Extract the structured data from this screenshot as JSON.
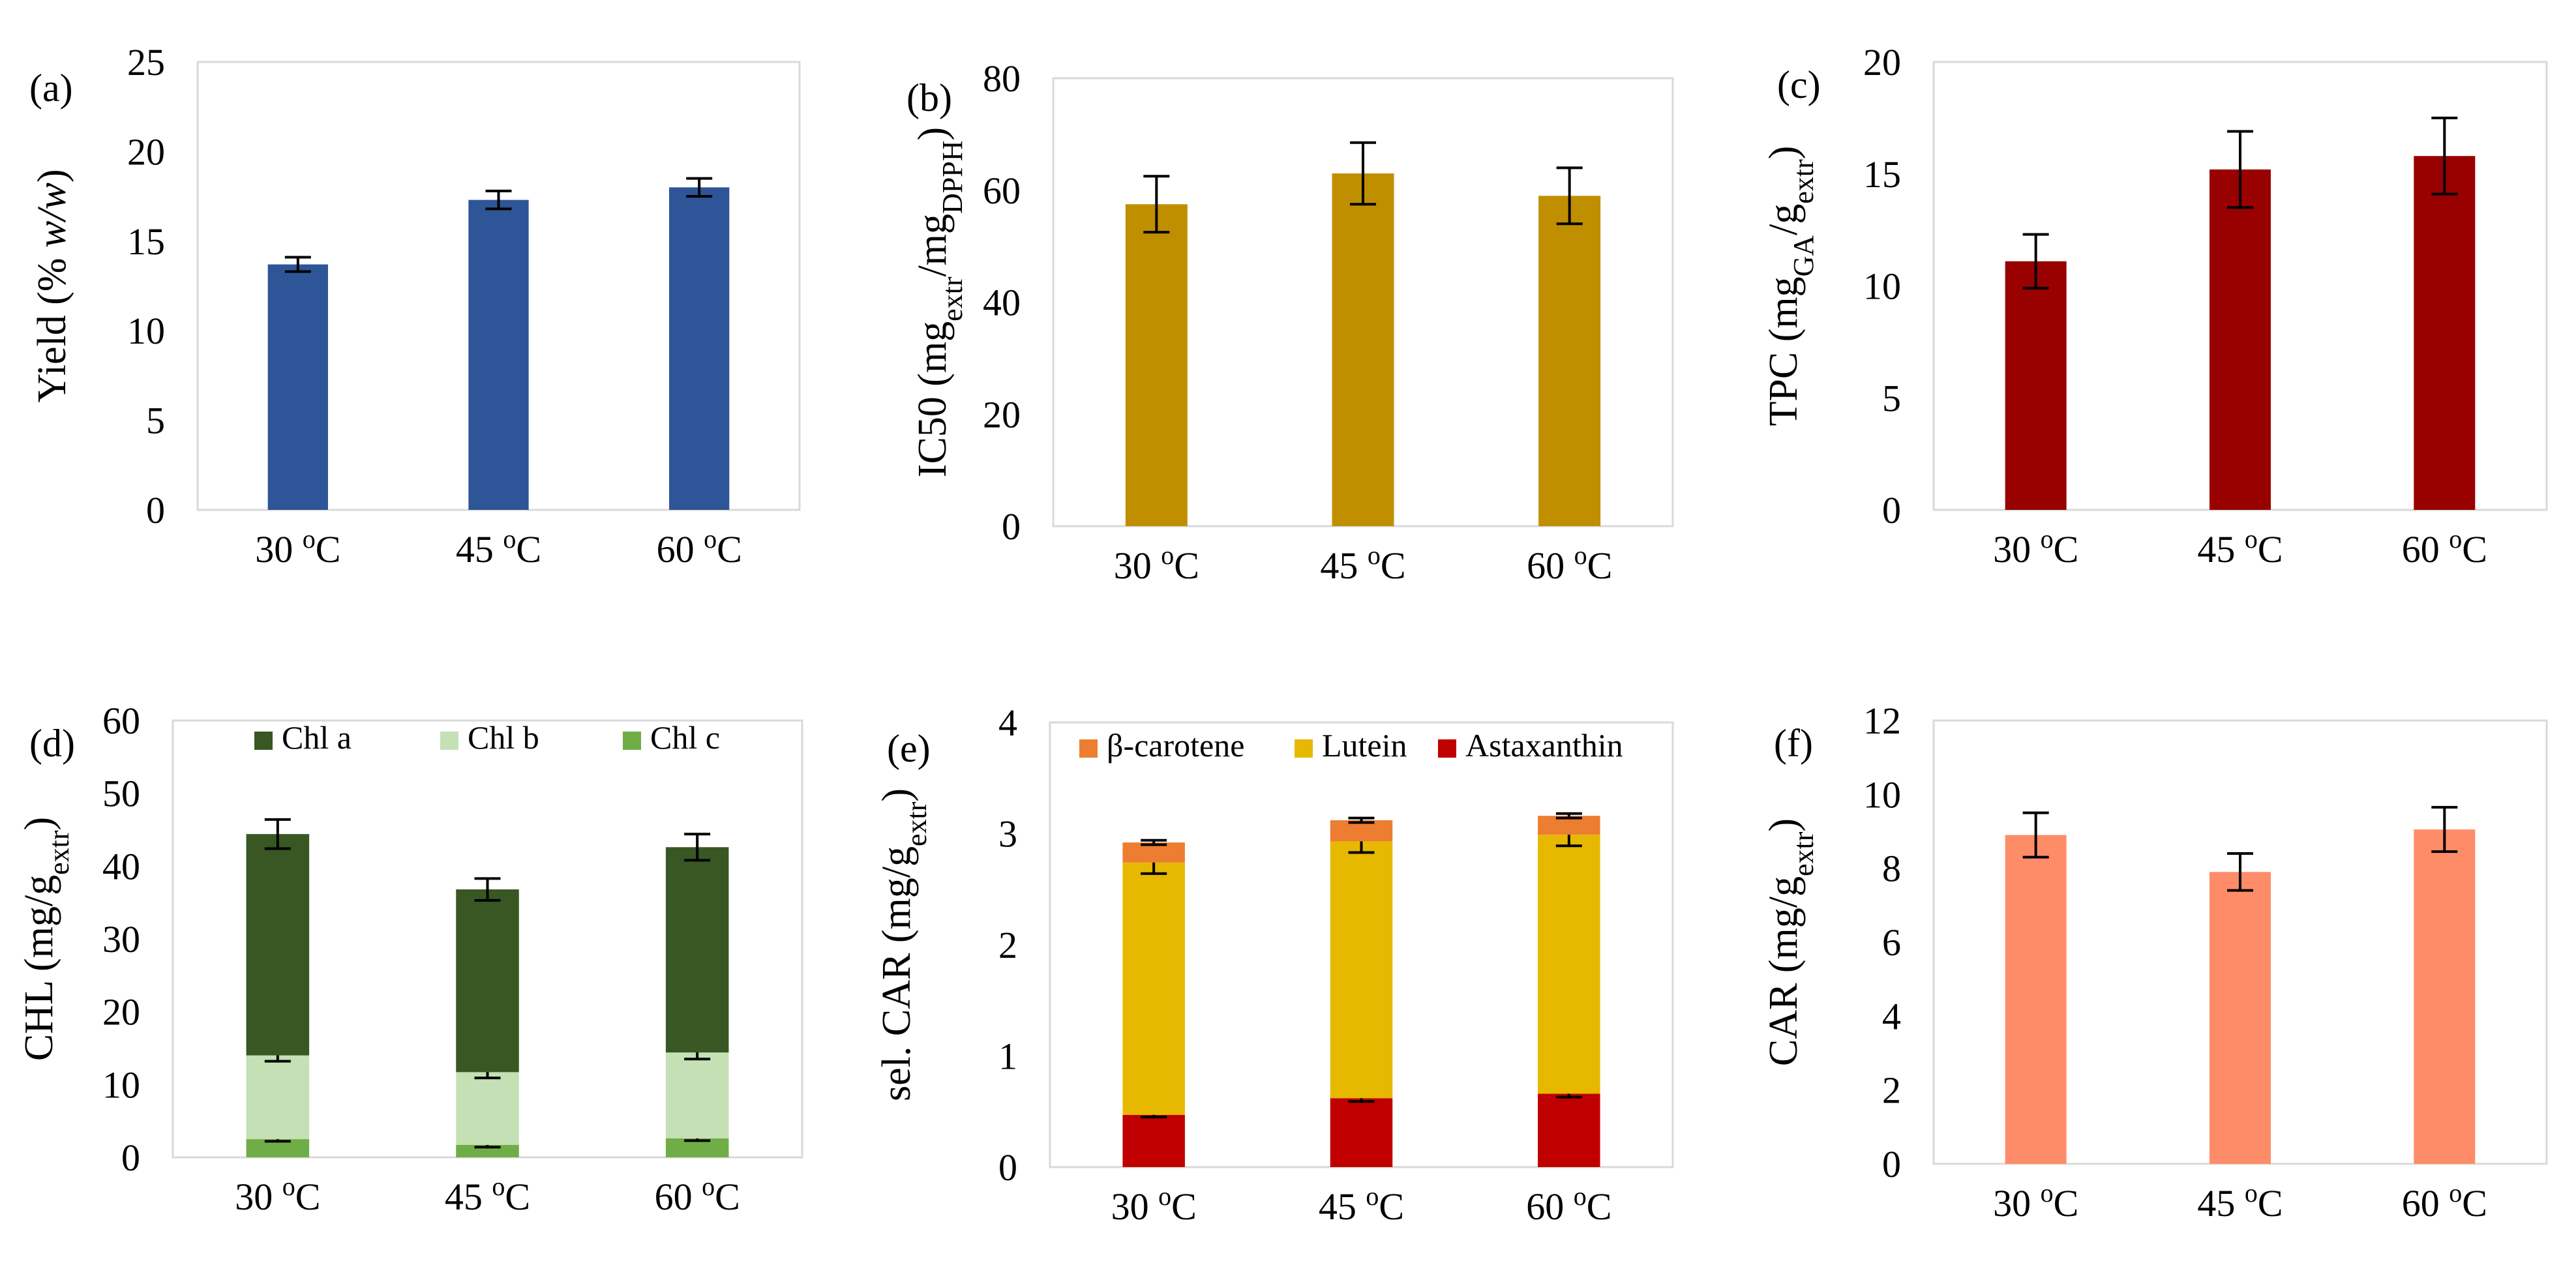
{
  "chart_data": [
    {
      "id": "a",
      "type": "bar",
      "panel_label": "(a)",
      "title": "",
      "xlabel": "",
      "ylabel": [
        "Yield (% ",
        "w/w",
        ")"
      ],
      "ylim": [
        0,
        25
      ],
      "yticks": [
        "0",
        "5",
        "10",
        "15",
        "20",
        "25"
      ],
      "categories": [
        "30 oC",
        "45 oC",
        "60 oC"
      ],
      "series": [
        {
          "name": "Yield",
          "color": "#2e5597",
          "values": [
            13.7,
            17.3,
            18.0
          ],
          "errors": [
            0.4,
            0.5,
            0.5
          ]
        }
      ]
    },
    {
      "id": "b",
      "type": "bar",
      "panel_label": "(b)",
      "title": "",
      "xlabel": "",
      "ylabel": [
        "IC50 (mg",
        "extr",
        "/mg",
        "DPPH",
        ")"
      ],
      "ylim": [
        0,
        80
      ],
      "yticks": [
        "0",
        "20",
        "40",
        "60",
        "80"
      ],
      "categories": [
        "30 oC",
        "45 oC",
        "60 oC"
      ],
      "series": [
        {
          "name": "IC50",
          "color": "#bf8f00",
          "values": [
            57.5,
            63.0,
            59.0
          ],
          "errors": [
            5.0,
            5.5,
            5.0
          ]
        }
      ]
    },
    {
      "id": "c",
      "type": "bar",
      "panel_label": "(c)",
      "title": "",
      "xlabel": "",
      "ylabel": [
        "TPC (mg",
        "GA",
        "/g",
        "extr",
        ")"
      ],
      "ylim": [
        0,
        20
      ],
      "yticks": [
        "0",
        "5",
        "10",
        "15",
        "20"
      ],
      "categories": [
        "30 oC",
        "45 oC",
        "60 oC"
      ],
      "series": [
        {
          "name": "TPC",
          "color": "#990000",
          "values": [
            11.1,
            15.2,
            15.8
          ],
          "errors": [
            1.2,
            1.7,
            1.7
          ]
        }
      ]
    },
    {
      "id": "d",
      "type": "bar",
      "stacked": true,
      "panel_label": "(d)",
      "title": "",
      "xlabel": "",
      "ylabel": [
        "CHL (mg/g",
        "extr",
        ")"
      ],
      "ylim": [
        0,
        60
      ],
      "yticks": [
        "0",
        "10",
        "20",
        "30",
        "40",
        "50",
        "60"
      ],
      "categories": [
        "30 oC",
        "45 oC",
        "60 oC"
      ],
      "legend": [
        "Chl a",
        "Chl b",
        "Chl c"
      ],
      "series": [
        {
          "name": "Chl c",
          "color": "#70ad47",
          "values": [
            2.5,
            1.7,
            2.6
          ],
          "errors": [
            0.3,
            0.3,
            0.3
          ]
        },
        {
          "name": "Chl b",
          "color": "#c5e0b4",
          "values": [
            11.5,
            10.0,
            11.8
          ],
          "errors": [
            0.8,
            0.8,
            0.9
          ]
        },
        {
          "name": "Chl a",
          "color": "#385723",
          "values": [
            30.4,
            25.1,
            28.2
          ],
          "errors": [
            2.0,
            1.5,
            1.8
          ]
        }
      ]
    },
    {
      "id": "e",
      "type": "bar",
      "stacked": true,
      "panel_label": "(e)",
      "title": "",
      "xlabel": "",
      "ylabel": [
        "sel. CAR (mg/g",
        "extr",
        ")"
      ],
      "ylim": [
        0,
        4
      ],
      "yticks": [
        "0",
        "1",
        "2",
        "3",
        "4"
      ],
      "categories": [
        "30 oC",
        "45 oC",
        "60 oC"
      ],
      "legend": [
        "β-carotene",
        "Lutein",
        "Astaxanthin"
      ],
      "series": [
        {
          "name": "Astaxanthin",
          "color": "#c00000",
          "values": [
            0.47,
            0.62,
            0.66
          ],
          "errors": [
            0.02,
            0.03,
            0.03
          ]
        },
        {
          "name": "Lutein",
          "color": "#e6b800",
          "values": [
            2.27,
            2.31,
            2.33
          ],
          "errors": [
            0.1,
            0.1,
            0.1
          ]
        },
        {
          "name": "β-carotene",
          "color": "#ed7d31",
          "values": [
            0.18,
            0.19,
            0.17
          ],
          "errors": [
            0.02,
            0.02,
            0.02
          ]
        }
      ]
    },
    {
      "id": "f",
      "type": "bar",
      "panel_label": "(f)",
      "title": "",
      "xlabel": "",
      "ylabel": [
        "CAR (mg/g",
        "extr",
        ")"
      ],
      "ylim": [
        0,
        12
      ],
      "yticks": [
        "0",
        "2",
        "4",
        "6",
        "8",
        "10",
        "12"
      ],
      "categories": [
        "30 oC",
        "45 oC",
        "60 oC"
      ],
      "series": [
        {
          "name": "CAR",
          "color": "#ff8c69",
          "values": [
            8.9,
            7.9,
            9.05
          ],
          "errors": [
            0.6,
            0.5,
            0.6
          ]
        }
      ]
    }
  ]
}
